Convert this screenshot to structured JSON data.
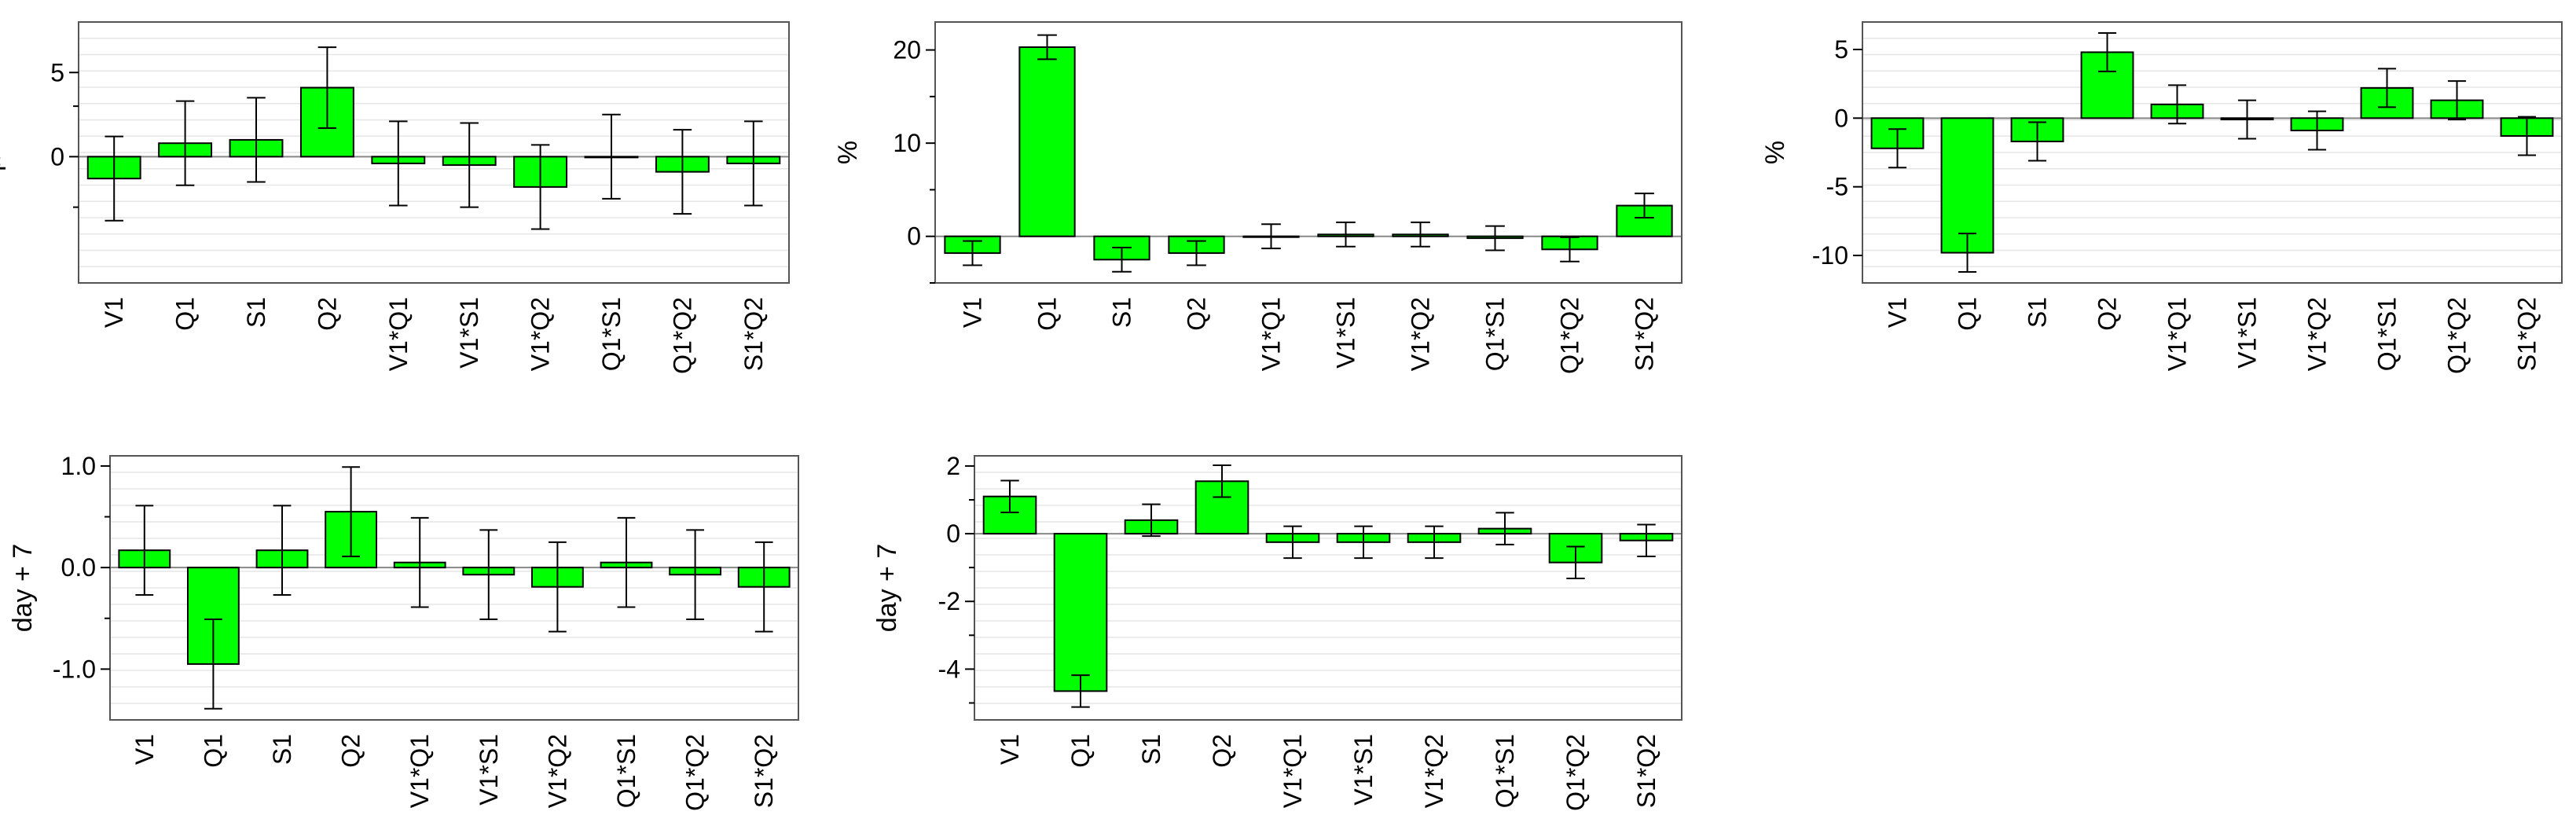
{
  "style": {
    "bar_color": "#00ff00",
    "bar_edge": "#000000",
    "zero_line": "#888888",
    "grid_color": "#e6e6e6",
    "frame_color": "#555555"
  },
  "chart_data": [
    {
      "type": "bar",
      "ylabel": "µm",
      "categories": [
        "V1",
        "Q1",
        "S1",
        "Q2",
        "V1*Q1",
        "V1*S1",
        "V1*Q2",
        "Q1*S1",
        "Q1*Q2",
        "S1*Q2"
      ],
      "values": [
        -1.3,
        0.8,
        1.0,
        4.1,
        -0.4,
        -0.5,
        -1.8,
        0.0,
        -0.9,
        -0.4
      ],
      "error": [
        2.5,
        2.5,
        2.5,
        2.4,
        2.5,
        2.5,
        2.5,
        2.5,
        2.5,
        2.5
      ],
      "ylim": [
        -7.5,
        8.0
      ],
      "major_ticks": [
        0,
        5
      ],
      "tick_labels": [
        "0",
        "5"
      ],
      "minor_ticks": [
        -3,
        3
      ],
      "grid": true
    },
    {
      "type": "bar",
      "ylabel": "%",
      "categories": [
        "V1",
        "Q1",
        "S1",
        "Q2",
        "V1*Q1",
        "V1*S1",
        "V1*Q2",
        "Q1*S1",
        "Q1*Q2",
        "S1*Q2"
      ],
      "values": [
        -1.8,
        20.3,
        -2.5,
        -1.8,
        0.0,
        0.2,
        0.2,
        -0.2,
        -1.4,
        3.3
      ],
      "error": [
        1.3,
        1.3,
        1.3,
        1.3,
        1.3,
        1.3,
        1.3,
        1.3,
        1.3,
        1.3
      ],
      "ylim": [
        -5.0,
        23.0
      ],
      "major_ticks": [
        0,
        10,
        20
      ],
      "tick_labels": [
        "0",
        "10",
        "20"
      ],
      "minor_ticks": [
        -5,
        5,
        15
      ],
      "grid": false
    },
    {
      "type": "bar",
      "ylabel": "%",
      "categories": [
        "V1",
        "Q1",
        "S1",
        "Q2",
        "V1*Q1",
        "V1*S1",
        "V1*Q2",
        "Q1*S1",
        "Q1*Q2",
        "S1*Q2"
      ],
      "values": [
        -2.2,
        -9.8,
        -1.7,
        4.8,
        1.0,
        -0.1,
        -0.9,
        2.2,
        1.3,
        -1.3
      ],
      "error": [
        1.4,
        1.4,
        1.4,
        1.4,
        1.4,
        1.4,
        1.4,
        1.4,
        1.4,
        1.4
      ],
      "ylim": [
        -12.0,
        7.0
      ],
      "major_ticks": [
        -10,
        -5,
        0,
        5
      ],
      "tick_labels": [
        "-10",
        "-5",
        "0",
        "5"
      ],
      "minor_ticks": [],
      "grid": true
    },
    {
      "type": "bar",
      "ylabel": "day + 7",
      "categories": [
        "V1",
        "Q1",
        "S1",
        "Q2",
        "V1*Q1",
        "V1*S1",
        "V1*Q2",
        "Q1*S1",
        "Q1*Q2",
        "S1*Q2"
      ],
      "values": [
        0.17,
        -0.95,
        0.17,
        0.55,
        0.05,
        -0.07,
        -0.19,
        0.05,
        -0.07,
        -0.19
      ],
      "error": [
        0.44,
        0.44,
        0.44,
        0.44,
        0.44,
        0.44,
        0.44,
        0.44,
        0.44,
        0.44
      ],
      "ylim": [
        -1.5,
        1.1
      ],
      "major_ticks": [
        -1.0,
        0.0,
        1.0
      ],
      "tick_labels": [
        "-1.0",
        "0.0",
        "1.0"
      ],
      "minor_ticks": [
        -0.5,
        0.5
      ],
      "grid": true
    },
    {
      "type": "bar",
      "ylabel": "day + 7",
      "categories": [
        "V1",
        "Q1",
        "S1",
        "Q2",
        "V1*Q1",
        "V1*S1",
        "V1*Q2",
        "Q1*S1",
        "Q1*Q2",
        "S1*Q2"
      ],
      "values": [
        1.1,
        -4.65,
        0.4,
        1.55,
        -0.25,
        -0.25,
        -0.25,
        0.15,
        -0.85,
        -0.2
      ],
      "error": [
        0.47,
        0.47,
        0.47,
        0.47,
        0.47,
        0.47,
        0.47,
        0.47,
        0.47,
        0.47
      ],
      "ylim": [
        -5.5,
        2.3
      ],
      "major_ticks": [
        -4,
        -2,
        0,
        2
      ],
      "tick_labels": [
        "-4",
        "-2",
        "0",
        "2"
      ],
      "minor_ticks": [
        -5,
        -3,
        -1,
        1
      ],
      "grid": true
    }
  ]
}
